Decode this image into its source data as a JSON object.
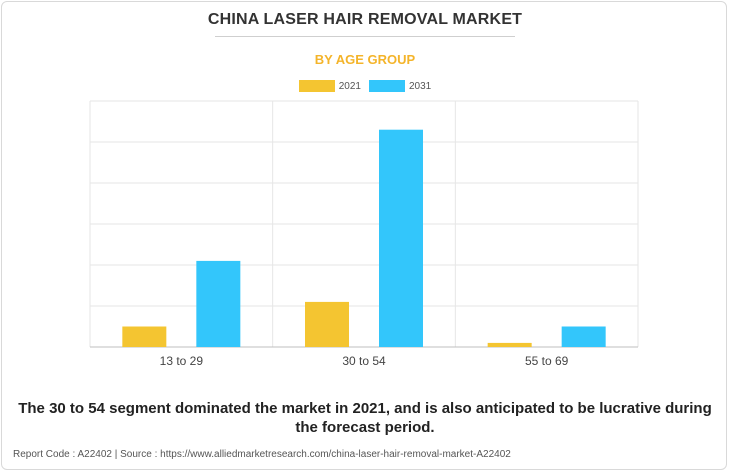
{
  "header": {
    "title": "CHINA LASER HAIR REMOVAL MARKET",
    "subtitle": "BY AGE GROUP"
  },
  "chart_data": {
    "type": "bar",
    "categories": [
      "13 to 29",
      "30 to 54",
      "55 to 69"
    ],
    "series": [
      {
        "name": "2021",
        "values": [
          0.5,
          1.1,
          0.1
        ],
        "color": "#f4c531"
      },
      {
        "name": "2031",
        "values": [
          2.1,
          5.3,
          0.5
        ],
        "color": "#33c6fb"
      }
    ],
    "ylim": [
      0,
      6
    ],
    "y_gridlines": 6,
    "grid": true,
    "legend_position": "top-center",
    "y_tick_labels_shown": false
  },
  "note": {
    "text": "The 30 to 54 segment dominated the market in 2021, and is also anticipated to be lucrative during the forecast period."
  },
  "footer": {
    "text": "Report Code : A22402  |  Source : https://www.alliedmarketresearch.com/china-laser-hair-removal-market-A22402"
  }
}
